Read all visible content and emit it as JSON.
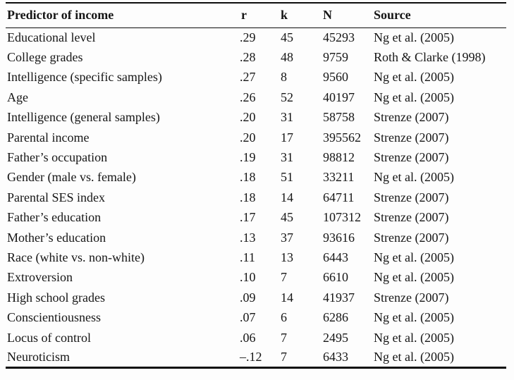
{
  "table": {
    "columns": [
      "Predictor of income",
      "r",
      "k",
      "N",
      "Source"
    ],
    "rows": [
      [
        "Educational level",
        ".29",
        "45",
        "45293",
        "Ng et al. (2005)"
      ],
      [
        "College grades",
        ".28",
        "48",
        "9759",
        "Roth & Clarke (1998)"
      ],
      [
        "Intelligence (specific samples)",
        ".27",
        "8",
        "9560",
        "Ng et al. (2005)"
      ],
      [
        "Age",
        ".26",
        "52",
        "40197",
        "Ng et al. (2005)"
      ],
      [
        "Intelligence (general samples)",
        ".20",
        "31",
        "58758",
        "Strenze (2007)"
      ],
      [
        "Parental income",
        ".20",
        "17",
        "395562",
        "Strenze (2007)"
      ],
      [
        "Father’s occupation",
        ".19",
        "31",
        "98812",
        "Strenze (2007)"
      ],
      [
        "Gender (male vs. female)",
        ".18",
        "51",
        "33211",
        "Ng et al. (2005)"
      ],
      [
        "Parental SES index",
        ".18",
        "14",
        "64711",
        "Strenze (2007)"
      ],
      [
        "Father’s education",
        ".17",
        "45",
        "107312",
        "Strenze (2007)"
      ],
      [
        "Mother’s education",
        ".13",
        "37",
        "93616",
        "Strenze (2007)"
      ],
      [
        "Race (white vs. non-white)",
        ".11",
        "13",
        "6443",
        "Ng et al. (2005)"
      ],
      [
        "Extroversion",
        ".10",
        "7",
        "6610",
        "Ng et al. (2005)"
      ],
      [
        "High school grades",
        ".09",
        "14",
        "41937",
        "Strenze (2007)"
      ],
      [
        "Conscientiousness",
        ".07",
        "6",
        "6286",
        "Ng et al. (2005)"
      ],
      [
        "Locus of control",
        ".06",
        "7",
        "2495",
        "Ng et al. (2005)"
      ],
      [
        "Neuroticism",
        "–.12",
        "7",
        "6433",
        "Ng et al. (2005)"
      ]
    ],
    "border_color": "#0d0d0d",
    "text_color": "#161616"
  }
}
